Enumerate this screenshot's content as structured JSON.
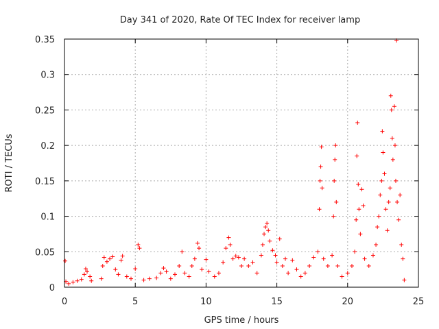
{
  "chart_data": {
    "type": "scatter",
    "title": "Day 341 of 2020, Rate Of TEC Index for receiver lamp",
    "xlabel": "GPS time / hours",
    "ylabel": "ROTI / TECUs",
    "xlim": [
      0,
      25
    ],
    "ylim": [
      0,
      0.35
    ],
    "xticks": [
      "0",
      "5",
      "10",
      "15",
      "20",
      "25"
    ],
    "yticks": [
      "0",
      "0.05",
      "0.1",
      "0.15",
      "0.2",
      "0.25",
      "0.3",
      "0.35"
    ],
    "grid": true,
    "marker": "+",
    "series": [
      {
        "color": "#ff0000",
        "points": [
          [
            0.05,
            0.037
          ],
          [
            0.1,
            0.008
          ],
          [
            0.3,
            0.005
          ],
          [
            0.6,
            0.007
          ],
          [
            0.9,
            0.009
          ],
          [
            1.2,
            0.011
          ],
          [
            1.4,
            0.018
          ],
          [
            1.5,
            0.026
          ],
          [
            1.6,
            0.022
          ],
          [
            1.8,
            0.015
          ],
          [
            1.9,
            0.009
          ],
          [
            2.6,
            0.012
          ],
          [
            2.7,
            0.03
          ],
          [
            2.8,
            0.042
          ],
          [
            3.0,
            0.036
          ],
          [
            3.2,
            0.04
          ],
          [
            3.4,
            0.043
          ],
          [
            3.6,
            0.025
          ],
          [
            3.8,
            0.018
          ],
          [
            4.0,
            0.038
          ],
          [
            4.1,
            0.044
          ],
          [
            4.4,
            0.015
          ],
          [
            4.7,
            0.012
          ],
          [
            5.0,
            0.026
          ],
          [
            5.2,
            0.06
          ],
          [
            5.3,
            0.055
          ],
          [
            5.6,
            0.01
          ],
          [
            6.0,
            0.012
          ],
          [
            6.5,
            0.013
          ],
          [
            6.8,
            0.02
          ],
          [
            7.0,
            0.027
          ],
          [
            7.2,
            0.022
          ],
          [
            7.5,
            0.012
          ],
          [
            7.8,
            0.018
          ],
          [
            8.1,
            0.03
          ],
          [
            8.3,
            0.05
          ],
          [
            8.5,
            0.02
          ],
          [
            8.8,
            0.015
          ],
          [
            9.0,
            0.03
          ],
          [
            9.2,
            0.04
          ],
          [
            9.4,
            0.062
          ],
          [
            9.5,
            0.055
          ],
          [
            9.7,
            0.025
          ],
          [
            10.0,
            0.039
          ],
          [
            10.2,
            0.022
          ],
          [
            10.6,
            0.015
          ],
          [
            10.9,
            0.02
          ],
          [
            11.2,
            0.035
          ],
          [
            11.4,
            0.055
          ],
          [
            11.6,
            0.07
          ],
          [
            11.7,
            0.06
          ],
          [
            11.9,
            0.04
          ],
          [
            12.1,
            0.044
          ],
          [
            12.3,
            0.042
          ],
          [
            12.5,
            0.03
          ],
          [
            12.7,
            0.04
          ],
          [
            13.0,
            0.03
          ],
          [
            13.3,
            0.035
          ],
          [
            13.6,
            0.02
          ],
          [
            13.9,
            0.045
          ],
          [
            14.0,
            0.06
          ],
          [
            14.1,
            0.075
          ],
          [
            14.2,
            0.085
          ],
          [
            14.3,
            0.09
          ],
          [
            14.4,
            0.08
          ],
          [
            14.5,
            0.065
          ],
          [
            14.7,
            0.052
          ],
          [
            14.9,
            0.045
          ],
          [
            15.0,
            0.035
          ],
          [
            15.2,
            0.068
          ],
          [
            15.4,
            0.03
          ],
          [
            15.6,
            0.04
          ],
          [
            15.8,
            0.02
          ],
          [
            16.1,
            0.038
          ],
          [
            16.4,
            0.025
          ],
          [
            16.7,
            0.015
          ],
          [
            17.0,
            0.02
          ],
          [
            17.3,
            0.03
          ],
          [
            17.6,
            0.042
          ],
          [
            17.9,
            0.05
          ],
          [
            18.0,
            0.11
          ],
          [
            18.05,
            0.15
          ],
          [
            18.1,
            0.17
          ],
          [
            18.15,
            0.198
          ],
          [
            18.2,
            0.14
          ],
          [
            18.3,
            0.04
          ],
          [
            18.6,
            0.03
          ],
          [
            18.9,
            0.045
          ],
          [
            19.0,
            0.1
          ],
          [
            19.05,
            0.15
          ],
          [
            19.1,
            0.18
          ],
          [
            19.15,
            0.2
          ],
          [
            19.2,
            0.12
          ],
          [
            19.3,
            0.03
          ],
          [
            19.6,
            0.015
          ],
          [
            20.0,
            0.02
          ],
          [
            20.3,
            0.03
          ],
          [
            20.5,
            0.05
          ],
          [
            20.6,
            0.095
          ],
          [
            20.65,
            0.185
          ],
          [
            20.7,
            0.232
          ],
          [
            20.75,
            0.145
          ],
          [
            20.8,
            0.11
          ],
          [
            20.9,
            0.075
          ],
          [
            21.0,
            0.138
          ],
          [
            21.1,
            0.115
          ],
          [
            21.2,
            0.04
          ],
          [
            21.5,
            0.03
          ],
          [
            21.8,
            0.045
          ],
          [
            22.0,
            0.06
          ],
          [
            22.1,
            0.085
          ],
          [
            22.2,
            0.1
          ],
          [
            22.3,
            0.13
          ],
          [
            22.4,
            0.15
          ],
          [
            22.45,
            0.22
          ],
          [
            22.5,
            0.19
          ],
          [
            22.6,
            0.16
          ],
          [
            22.7,
            0.11
          ],
          [
            22.8,
            0.08
          ],
          [
            22.9,
            0.12
          ],
          [
            23.0,
            0.14
          ],
          [
            23.05,
            0.27
          ],
          [
            23.1,
            0.25
          ],
          [
            23.15,
            0.21
          ],
          [
            23.2,
            0.18
          ],
          [
            23.3,
            0.255
          ],
          [
            23.35,
            0.2
          ],
          [
            23.4,
            0.15
          ],
          [
            23.45,
            0.348
          ],
          [
            23.5,
            0.12
          ],
          [
            23.6,
            0.095
          ],
          [
            23.7,
            0.13
          ],
          [
            23.8,
            0.06
          ],
          [
            23.9,
            0.04
          ],
          [
            24.0,
            0.01
          ]
        ]
      }
    ]
  }
}
